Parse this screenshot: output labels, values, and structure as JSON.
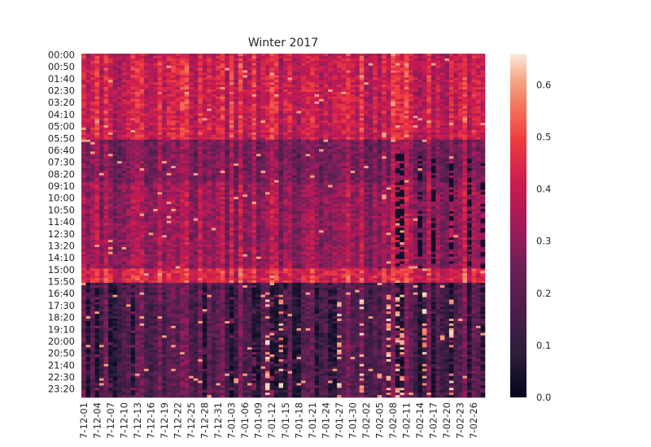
{
  "chart_data": {
    "type": "heatmap",
    "title": "Winter 2017",
    "xlabel": "",
    "ylabel": "",
    "y_tick_labels": [
      "00:00",
      "00:50",
      "01:40",
      "02:30",
      "03:20",
      "04:10",
      "05:00",
      "05:50",
      "06:40",
      "07:30",
      "08:20",
      "09:10",
      "10:00",
      "10:50",
      "11:40",
      "12:30",
      "13:20",
      "14:10",
      "15:00",
      "15:50",
      "16:40",
      "17:30",
      "18:20",
      "19:10",
      "20:00",
      "20:50",
      "21:40",
      "22:30",
      "23:20"
    ],
    "x_tick_labels": [
      "7-12-01",
      "7-12-04",
      "7-12-07",
      "7-12-10",
      "7-12-13",
      "7-12-16",
      "7-12-19",
      "7-12-22",
      "7-12-25",
      "7-12-28",
      "7-12-31",
      "7-01-03",
      "7-01-06",
      "7-01-09",
      "7-01-12",
      "7-01-15",
      "7-01-18",
      "7-01-21",
      "7-01-24",
      "7-01-27",
      "7-01-30",
      "7-02-02",
      "7-02-05",
      "7-02-08",
      "7-02-11",
      "7-02-14",
      "7-02-17",
      "7-02-20",
      "7-02-23",
      "7-02-26"
    ],
    "colorbar": {
      "ticks": [
        "0.0",
        "0.1",
        "0.2",
        "0.3",
        "0.4",
        "0.5",
        "0.6"
      ],
      "vmin": 0.0,
      "vmax": 0.66,
      "colormap": "rocket"
    },
    "grid": false,
    "legend": "colorbar-right",
    "columns_days": 90,
    "rows_per_day": 144,
    "row_interval_minutes": 10,
    "cell_value_profile": {
      "night_00_06": 0.42,
      "morning_06_09": 0.28,
      "midday_09_15": 0.33,
      "afternoon_15_16": 0.45,
      "evening_16_24": 0.2
    }
  }
}
